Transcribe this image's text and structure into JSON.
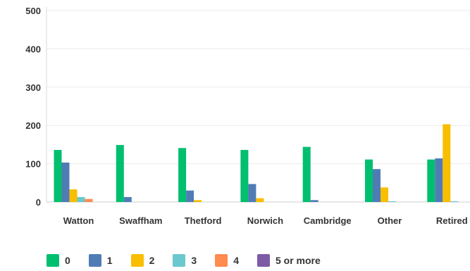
{
  "chart_data": {
    "type": "bar",
    "categories": [
      "Watton",
      "Swaffham",
      "Thetford",
      "Norwich",
      "Cambridge",
      "Other",
      "Retired"
    ],
    "series": [
      {
        "name": "0",
        "color": "#00bf6f",
        "values": [
          136,
          149,
          141,
          136,
          144,
          111,
          111
        ]
      },
      {
        "name": "1",
        "color": "#507cb6",
        "values": [
          103,
          13,
          30,
          47,
          5,
          86,
          114
        ]
      },
      {
        "name": "2",
        "color": "#f9be00",
        "values": [
          33,
          0,
          5,
          10,
          0,
          38,
          203
        ]
      },
      {
        "name": "3",
        "color": "#6bc8cd",
        "values": [
          13,
          0,
          0,
          0,
          0,
          2,
          2
        ]
      },
      {
        "name": "4",
        "color": "#ff8b4f",
        "values": [
          8,
          0,
          0,
          0,
          0,
          0,
          0
        ]
      },
      {
        "name": "5 or more",
        "color": "#7d5ba6",
        "values": [
          0,
          0,
          0,
          0,
          0,
          0,
          0
        ]
      }
    ],
    "yticks": [
      0,
      100,
      200,
      300,
      400,
      500
    ],
    "ylim": [
      0,
      500
    ],
    "grid": true,
    "legend": "bottom-left"
  }
}
